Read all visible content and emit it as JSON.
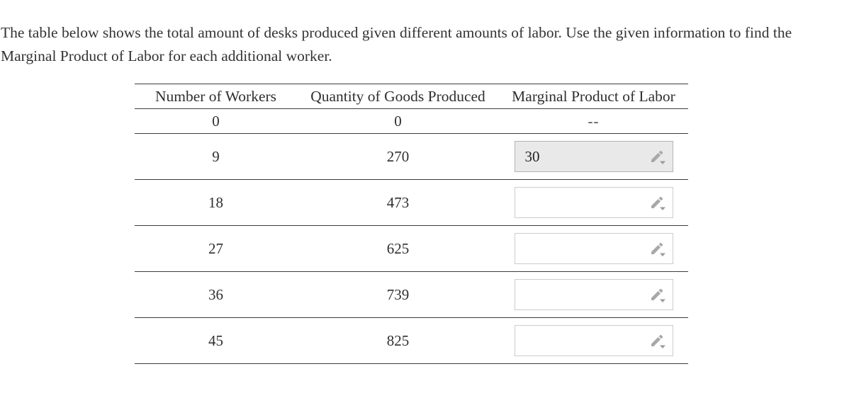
{
  "instructions": {
    "text": "The table below shows the total amount of desks produced given different amounts of labor. Use the given information to find the Marginal Product of Labor for each additional worker."
  },
  "table": {
    "headers": [
      "Number of Workers",
      "Quantity of Goods Produced",
      "Marginal Product of Labor"
    ],
    "rows": [
      {
        "workers": "0",
        "quantity": "0",
        "answer_type": "static",
        "answer": "--"
      },
      {
        "workers": "9",
        "quantity": "270",
        "answer_type": "input",
        "value": "30",
        "filled": true
      },
      {
        "workers": "18",
        "quantity": "473",
        "answer_type": "input",
        "value": "",
        "filled": false
      },
      {
        "workers": "27",
        "quantity": "625",
        "answer_type": "input",
        "value": "",
        "filled": false
      },
      {
        "workers": "36",
        "quantity": "739",
        "answer_type": "input",
        "value": "",
        "filled": false
      },
      {
        "workers": "45",
        "quantity": "825",
        "answer_type": "input",
        "value": "",
        "filled": false
      }
    ]
  },
  "icons": {
    "edit_icon": "pencil-edit-with-dropdown"
  },
  "colors": {
    "filled_input_bg": "#e9e9e9",
    "filled_input_border": "#b3b3b3",
    "empty_input_border": "#cccccc",
    "icon_gray": "#a8a8a8",
    "icon_triangle_gray": "#9b9b9b",
    "table_line": "#3c3c3c"
  }
}
